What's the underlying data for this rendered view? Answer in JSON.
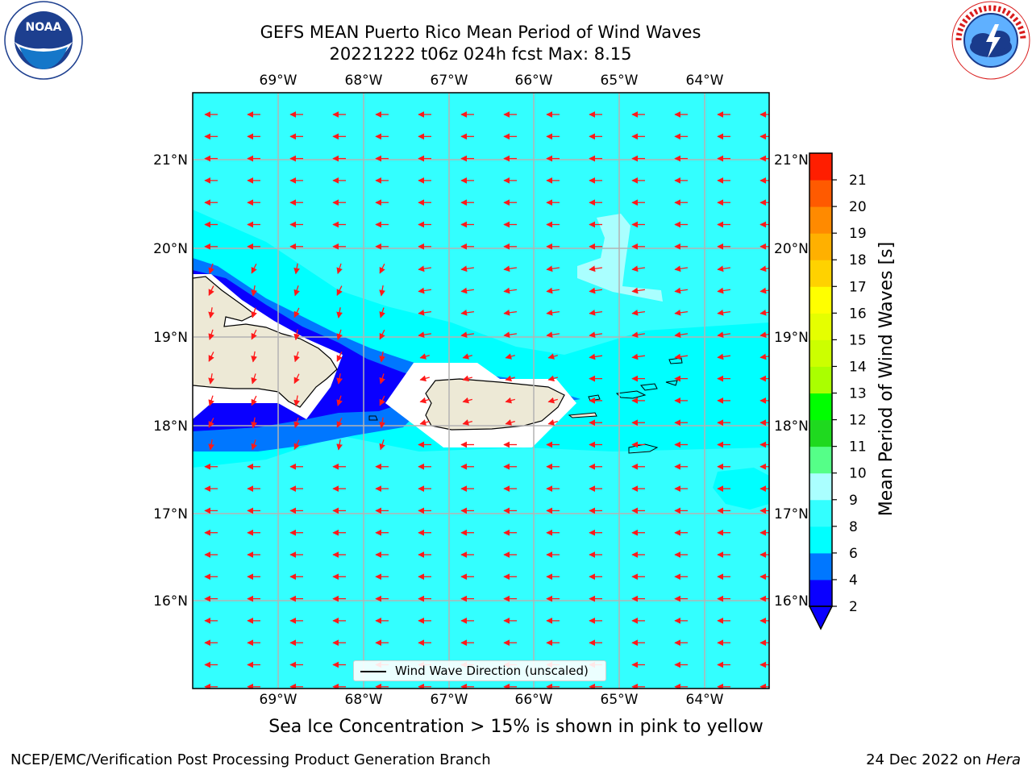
{
  "title": {
    "line1": "GEFS MEAN Puerto Rico Mean Period of Wind Waves",
    "line2": "20221222 t06z 024h fcst   Max: 8.15"
  },
  "logos": {
    "left": "noaa-logo",
    "left_text": "NOAA",
    "left_ring_text": "NATIONAL OCEANIC AND ATMOSPHERIC ADMINISTRATION · U.S. DEPARTMENT OF COMMERCE",
    "right": "nws-logo",
    "right_ring_text": "NATIONAL WEATHER SERVICE"
  },
  "map": {
    "lon_labels": [
      "69°W",
      "68°W",
      "67°W",
      "66°W",
      "65°W",
      "64°W"
    ],
    "lat_labels": [
      "21°N",
      "20°N",
      "19°N",
      "18°N",
      "17°N",
      "16°N"
    ],
    "legend_label": "Wind Wave Direction (unscaled)",
    "max_value": 8.15,
    "colors": {
      "ocean": "#33ffff",
      "land": "#ede9d6",
      "mask": "#ffffff",
      "arrow": "#ff1a1a"
    }
  },
  "colorbar": {
    "label": "Mean Period of Wind Waves [s]",
    "ticks": [
      "2",
      "4",
      "6",
      "8",
      "9",
      "10",
      "11",
      "12",
      "13",
      "14",
      "15",
      "16",
      "17",
      "18",
      "19",
      "20",
      "21"
    ],
    "colors": [
      "#0a00ff",
      "#0077ff",
      "#00ffff",
      "#33ffff",
      "#aaffff",
      "#55ff88",
      "#1fd91f",
      "#00ff00",
      "#aaff00",
      "#ccff00",
      "#e5ff00",
      "#ffff00",
      "#ffd200",
      "#ffb000",
      "#ff8a00",
      "#ff5a00",
      "#ff1e00"
    ],
    "extend": "min"
  },
  "subtitle": "Sea Ice Concentration > 15% is shown in pink to yellow",
  "footer": {
    "left": "NCEP/EMC/Verification Post Processing Product Generation Branch",
    "right_date": "24 Dec 2022 on",
    "right_host": "Hera"
  }
}
